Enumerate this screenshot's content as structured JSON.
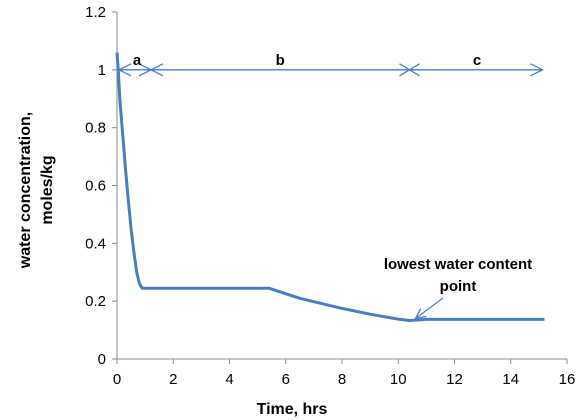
{
  "chart_data": {
    "type": "line",
    "xlabel": "Time, hrs",
    "ylabel_lines": [
      "water concentration,",
      "moles/kg"
    ],
    "xlim": [
      0,
      16
    ],
    "ylim": [
      0,
      1.2
    ],
    "x_ticks": [
      0,
      2,
      4,
      6,
      8,
      10,
      12,
      14,
      16
    ],
    "y_ticks": [
      0,
      0.2,
      0.4,
      0.6,
      0.8,
      1,
      1.2
    ],
    "x_tick_labels": [
      "0",
      "2",
      "4",
      "6",
      "8",
      "10",
      "12",
      "14",
      "16"
    ],
    "y_tick_labels": [
      "0",
      "0.2",
      "0.4",
      "0.6",
      "0.8",
      "1",
      "1.2"
    ],
    "grid": false,
    "series": [
      {
        "color": "#4a7ebb",
        "x": [
          0,
          0.05,
          0.1,
          0.2,
          0.3,
          0.4,
          0.5,
          0.6,
          0.7,
          0.8,
          0.9,
          1.5,
          3,
          5.4,
          6.5,
          8,
          9,
          10,
          10.4,
          11,
          13,
          15.2
        ],
        "y": [
          1.06,
          0.99,
          0.9,
          0.78,
          0.66,
          0.55,
          0.45,
          0.37,
          0.3,
          0.26,
          0.245,
          0.245,
          0.245,
          0.245,
          0.21,
          0.175,
          0.155,
          0.138,
          0.133,
          0.137,
          0.137,
          0.137
        ]
      }
    ],
    "phase_arrows": {
      "y": 1.0,
      "markers_x": [
        0,
        10.4,
        15.2
      ],
      "labels": [
        "a",
        "b",
        "c"
      ]
    },
    "annotation": {
      "lines": [
        "lowest water content",
        "point"
      ],
      "point_x": 10.4,
      "point_y": 0.133
    }
  }
}
